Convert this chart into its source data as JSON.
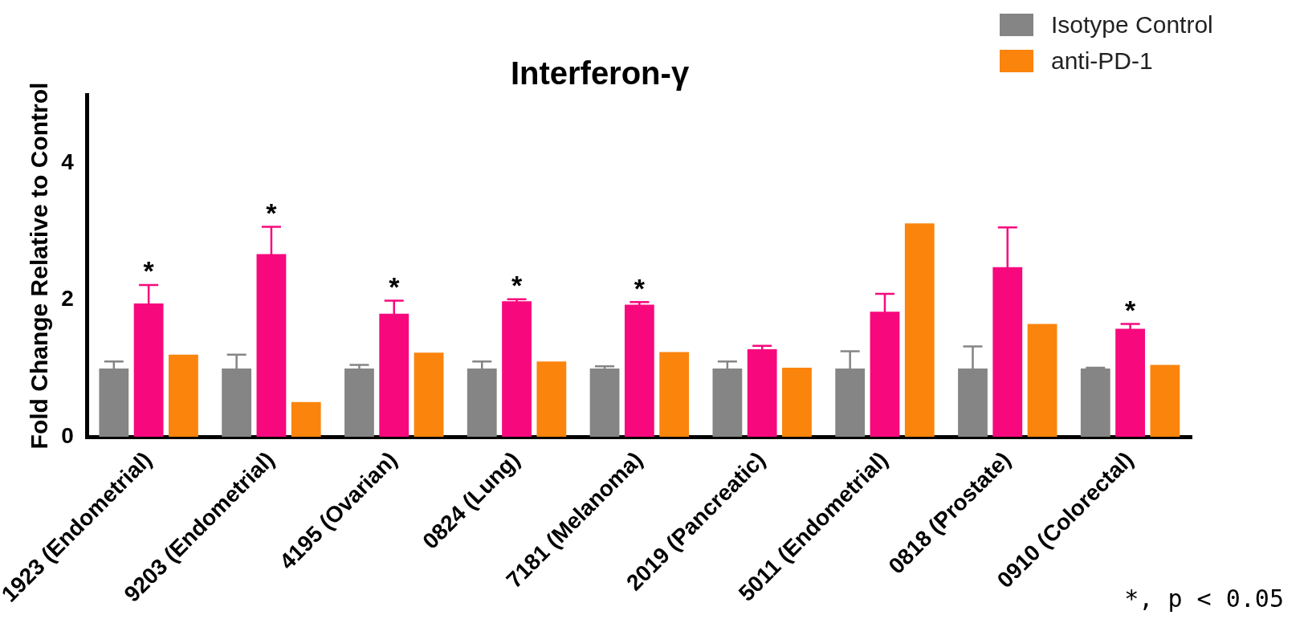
{
  "chart_data": {
    "type": "bar",
    "title": "Interferon-γ",
    "ylabel": "Fold Change Relative to Control",
    "categories": [
      "1923 (Endometrial)",
      "9203 (Endometrial)",
      "4195 (Ovarian)",
      "0824 (Lung)",
      "7181 (Melanoma)",
      "2019 (Pancreatic)",
      "5011 (Endometrial)",
      "0818 (Prostate)",
      "0910 (Colorectal)"
    ],
    "series": [
      {
        "name": "Isotype Control",
        "color": "#858585",
        "values": [
          1,
          1,
          1,
          1,
          1,
          1,
          1,
          1,
          1
        ],
        "errors": [
          0.1,
          0.2,
          0.05,
          0.1,
          0.03,
          0.1,
          0.25,
          0.32,
          0.01
        ]
      },
      {
        "color": "#f7087d",
        "values": [
          1.95,
          2.67,
          1.8,
          1.98,
          1.93,
          1.28,
          1.83,
          2.48,
          1.58
        ],
        "errors": [
          0.27,
          0.4,
          0.19,
          0.03,
          0.04,
          0.05,
          0.26,
          0.58,
          0.07
        ]
      },
      {
        "name": "anti-PD-1",
        "color": "#fb840d",
        "values": [
          1.2,
          0.51,
          1.23,
          1.1,
          1.24,
          1.01,
          3.12,
          1.65,
          1.05
        ]
      }
    ],
    "ylim": [
      0,
      5
    ],
    "yticks": [
      0,
      2,
      4
    ],
    "grid": false,
    "legend": "top right",
    "annotations": [
      {
        "text": "*",
        "x": "1923 (Endometrial)",
        "y": 2.22
      },
      {
        "text": "*",
        "x": "9203 (Endometrial)",
        "y": 3.07
      },
      {
        "text": "*",
        "x": "4195 (Ovarian)",
        "y": 1.99
      },
      {
        "text": "*",
        "x": "0824 (Lung)",
        "y": 2.01
      },
      {
        "text": "*",
        "x": "7181 (Melanoma)",
        "y": 1.97
      },
      {
        "text": "*",
        "x": "0910 (Colorectal)",
        "y": 1.65
      },
      "*, p < 0.05"
    ]
  }
}
